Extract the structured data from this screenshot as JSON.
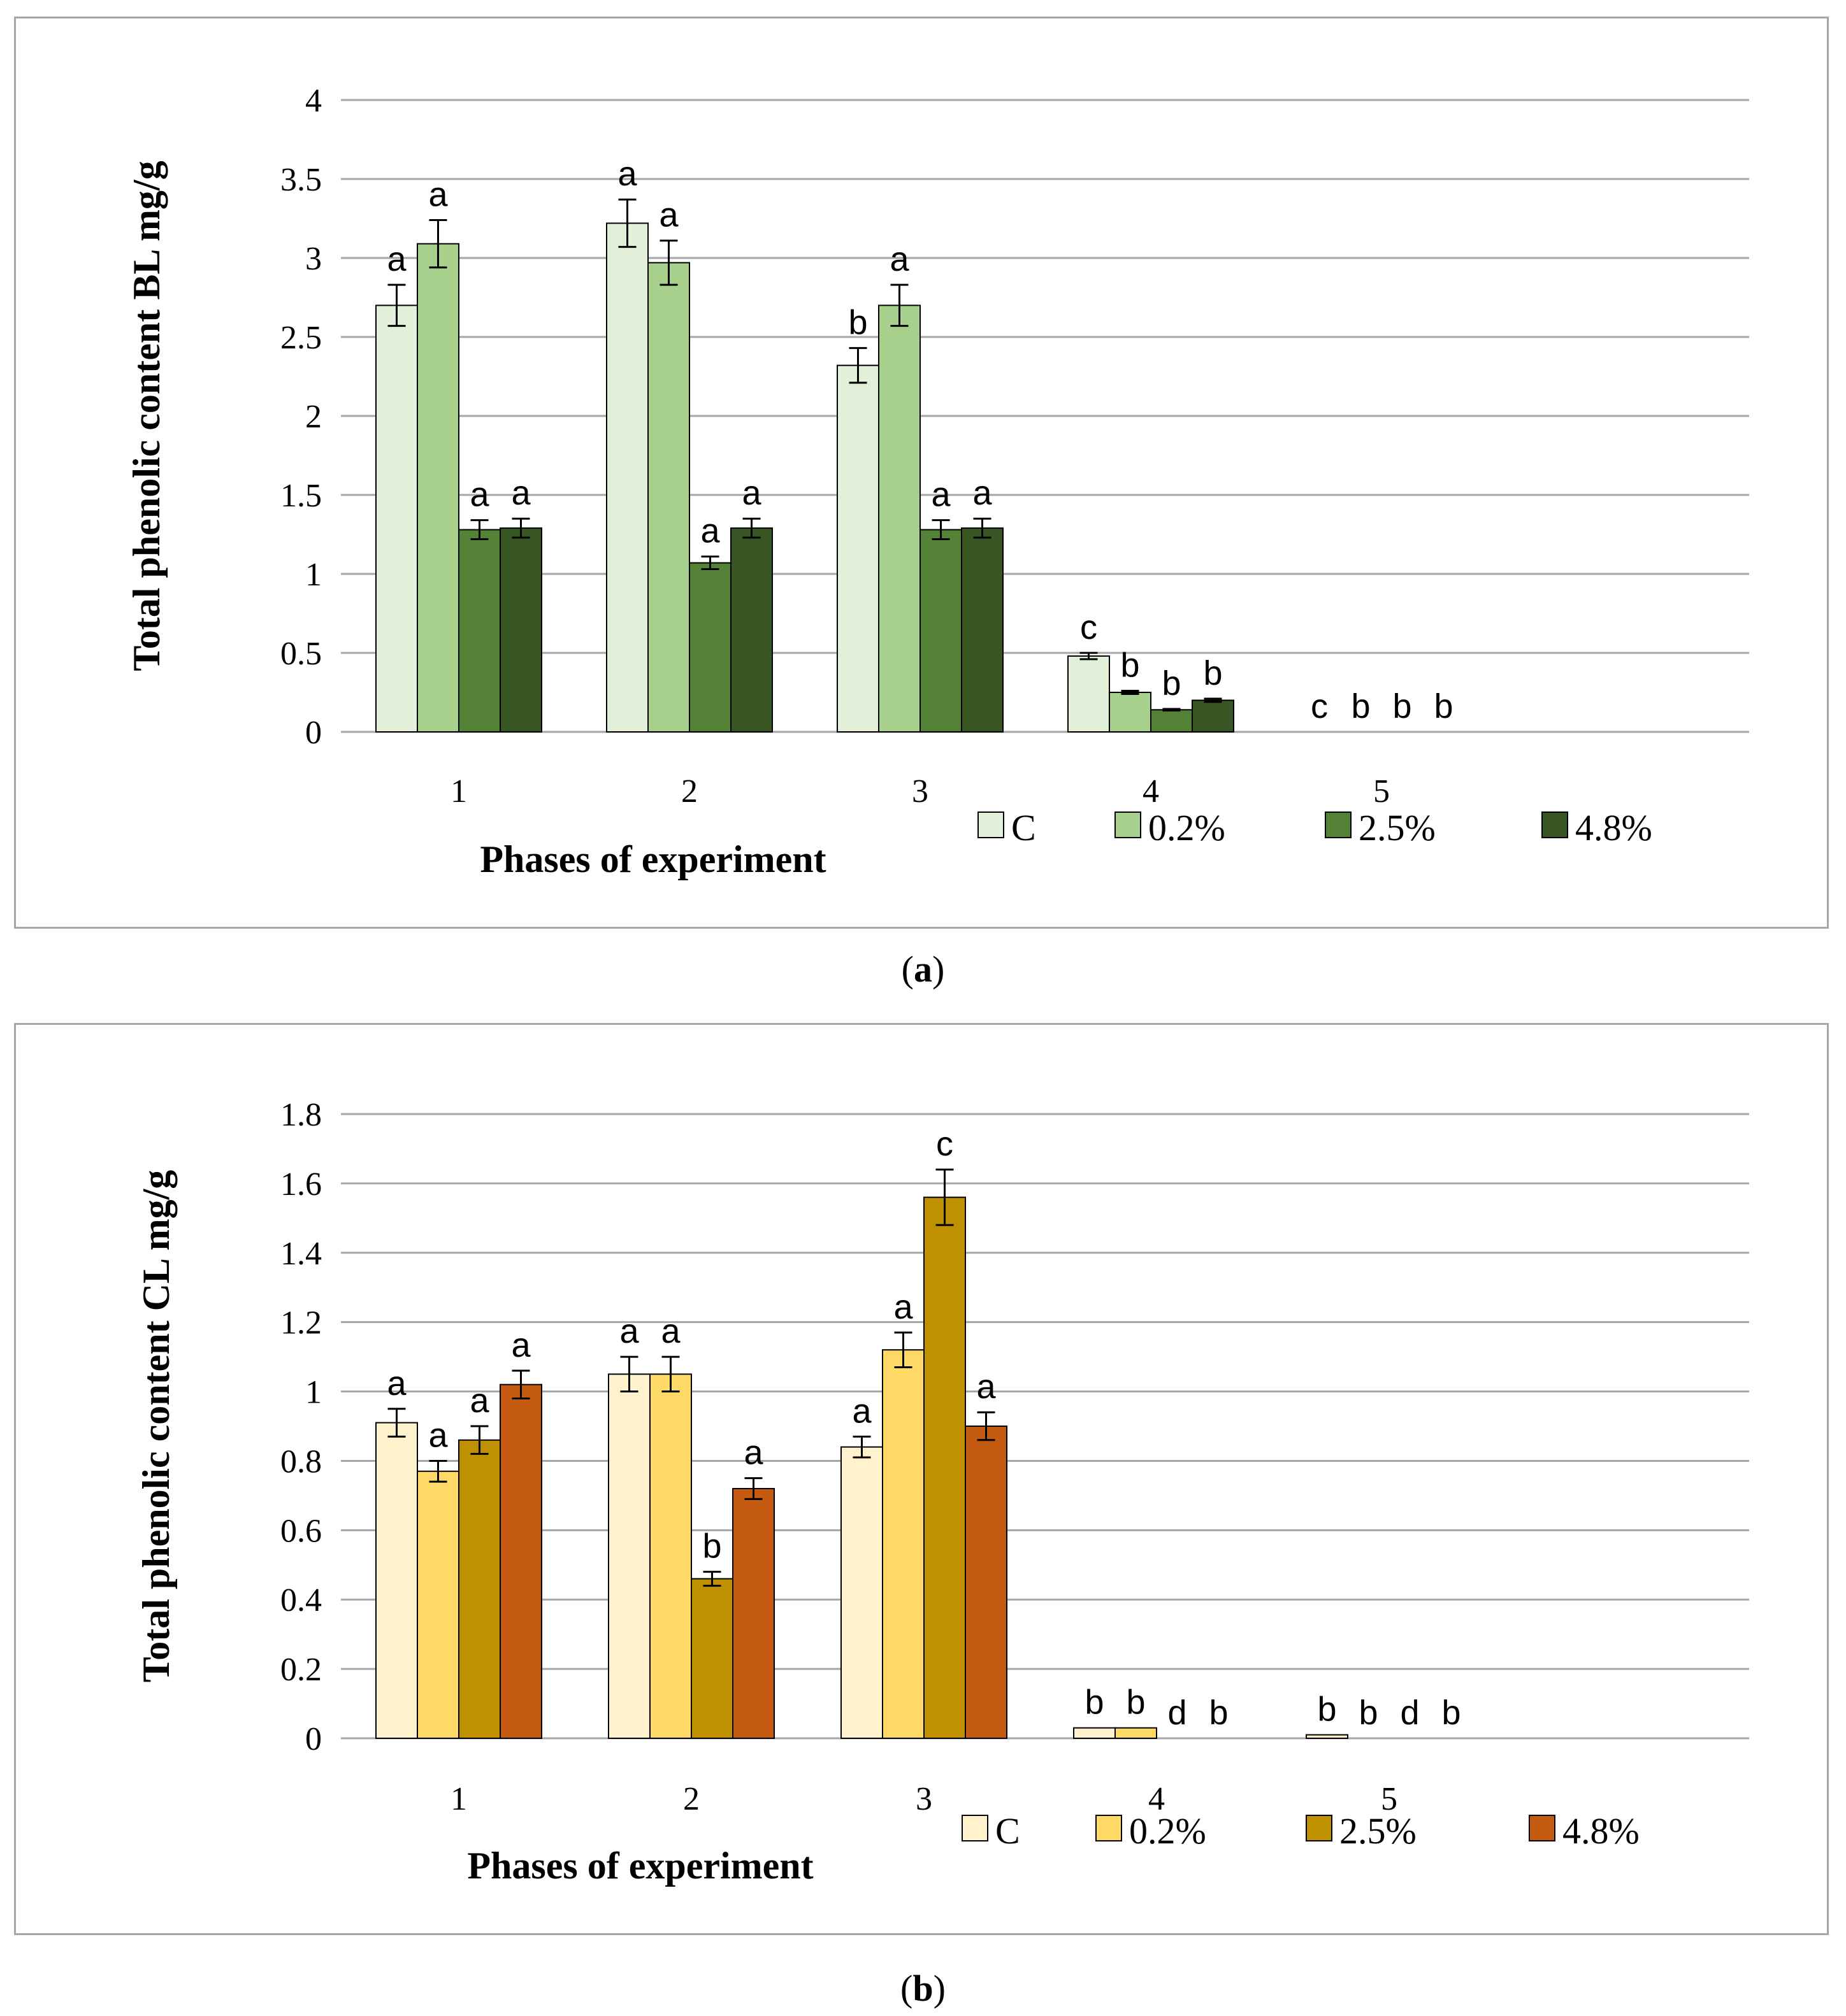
{
  "chart_data": [
    {
      "type": "bar",
      "panel": "a",
      "caption": "a",
      "xlabel": "Phases of experiment",
      "ylabel": "Total phenolic content BL mg/g",
      "ylim": [
        0,
        4
      ],
      "yticks": [
        "0",
        "0.5",
        "1",
        "1.5",
        "2",
        "2.5",
        "3",
        "3.5",
        "4"
      ],
      "categories": [
        "1",
        "2",
        "3",
        "4",
        "5"
      ],
      "grid": true,
      "legend_position": "bottom-right",
      "series": [
        {
          "name": "C",
          "color": "#e2efd9",
          "values": [
            2.7,
            3.22,
            2.32,
            0.48,
            0
          ],
          "errors": [
            0.13,
            0.15,
            0.11,
            0.02,
            0
          ],
          "labels": [
            "a",
            "a",
            "b",
            "c",
            "c"
          ]
        },
        {
          "name": "0.2%",
          "color": "#a8d08d",
          "values": [
            3.09,
            2.97,
            2.7,
            0.25,
            0
          ],
          "errors": [
            0.15,
            0.14,
            0.13,
            0.01,
            0
          ],
          "labels": [
            "a",
            "a",
            "a",
            "b",
            "b"
          ]
        },
        {
          "name": "2.5%",
          "color": "#538135",
          "values": [
            1.28,
            1.07,
            1.28,
            0.14,
            0
          ],
          "errors": [
            0.06,
            0.04,
            0.06,
            0.005,
            0
          ],
          "labels": [
            "a",
            "a",
            "a",
            "b",
            "b"
          ]
        },
        {
          "name": "4.8%",
          "color": "#375623",
          "values": [
            1.29,
            1.29,
            1.29,
            0.2,
            0
          ],
          "errors": [
            0.06,
            0.06,
            0.06,
            0.01,
            0
          ],
          "labels": [
            "a",
            "a",
            "a",
            "b",
            "b"
          ]
        }
      ]
    },
    {
      "type": "bar",
      "panel": "b",
      "caption": "b",
      "xlabel": "Phases of experiment",
      "ylabel": "Total phenolic content CL mg/g",
      "ylim": [
        0,
        1.8
      ],
      "yticks": [
        "0",
        "0.2",
        "0.4",
        "0.6",
        "0.8",
        "1",
        "1.2",
        "1.4",
        "1.6",
        "1.8"
      ],
      "categories": [
        "1",
        "2",
        "3",
        "4",
        "5"
      ],
      "grid": true,
      "legend_position": "bottom-right",
      "series": [
        {
          "name": "C",
          "color": "#fff2cc",
          "values": [
            0.91,
            1.05,
            0.84,
            0.03,
            0.01
          ],
          "errors": [
            0.04,
            0.05,
            0.03,
            0,
            0
          ],
          "labels": [
            "a",
            "a",
            "a",
            "b",
            "b"
          ]
        },
        {
          "name": "0.2%",
          "color": "#ffd966",
          "values": [
            0.77,
            1.05,
            1.12,
            0.03,
            0
          ],
          "errors": [
            0.03,
            0.05,
            0.05,
            0,
            0
          ],
          "labels": [
            "a",
            "a",
            "a",
            "b",
            "b"
          ]
        },
        {
          "name": "2.5%",
          "color": "#bf9000",
          "values": [
            0.86,
            0.46,
            1.56,
            0,
            0
          ],
          "errors": [
            0.04,
            0.02,
            0.08,
            0,
            0
          ],
          "labels": [
            "a",
            "b",
            "c",
            "d",
            "d"
          ]
        },
        {
          "name": "4.8%",
          "color": "#c55a11",
          "values": [
            1.02,
            0.72,
            0.9,
            0,
            0
          ],
          "errors": [
            0.04,
            0.03,
            0.04,
            0,
            0
          ],
          "labels": [
            "a",
            "a",
            "a",
            "b",
            "b"
          ]
        }
      ]
    }
  ]
}
